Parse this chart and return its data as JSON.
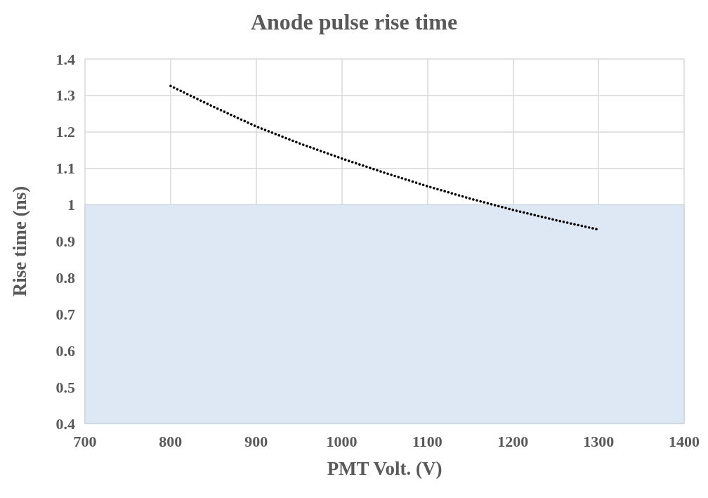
{
  "chart_data": {
    "type": "line",
    "title": "Anode pulse rise time",
    "xlabel": "PMT Volt. (V)",
    "ylabel": "Rise time (ns)",
    "x": [
      800,
      850,
      900,
      950,
      1000,
      1050,
      1100,
      1150,
      1200,
      1250,
      1300
    ],
    "series": [
      {
        "color": "#000000",
        "values": [
          1.326,
          1.269,
          1.215,
          1.169,
          1.127,
          1.088,
          1.051,
          1.017,
          0.986,
          0.958,
          0.932
        ]
      }
    ],
    "xlim": [
      700,
      1400
    ],
    "xticks": [
      700,
      800,
      900,
      1000,
      1100,
      1200,
      1300,
      1400
    ],
    "ylim": [
      0.4,
      1.4
    ],
    "yticks": [
      0.4,
      0.5,
      0.6,
      0.7,
      0.8,
      0.9,
      1,
      1.1,
      1.2,
      1.3,
      1.4
    ],
    "bands": [
      {
        "axis": "y",
        "from": 0.4,
        "to": 1,
        "color": "#dde8f4"
      }
    ],
    "grid": true,
    "marker": "none",
    "line_style": "dotted"
  }
}
